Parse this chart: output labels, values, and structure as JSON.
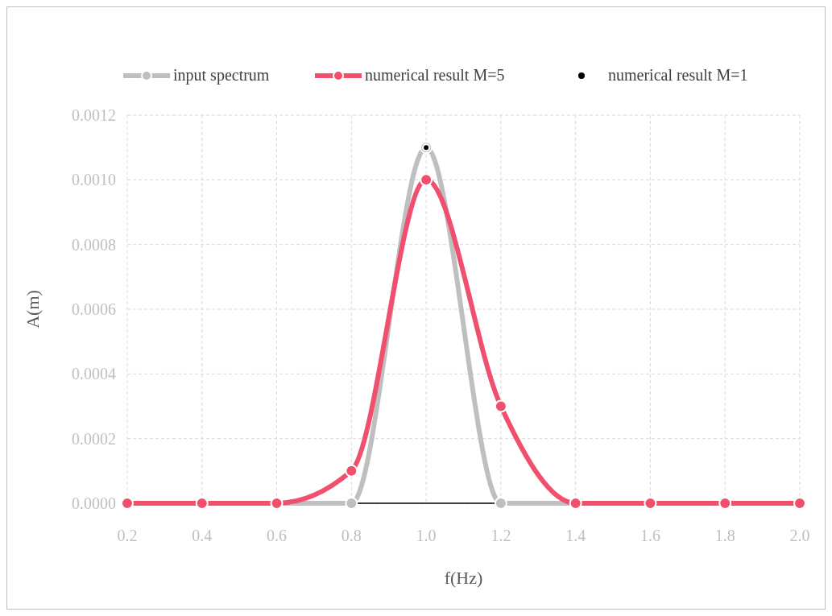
{
  "chart_data": {
    "type": "line",
    "xlabel": "f(Hz)",
    "ylabel": "A(m)",
    "x": [
      0.2,
      0.4,
      0.6,
      0.8,
      1.0,
      1.2,
      1.4,
      1.6,
      1.8,
      2.0
    ],
    "series": [
      {
        "name": "input spectrum",
        "color": "#bfbfbf",
        "values": [
          0,
          0,
          0,
          0,
          0.0011,
          0,
          0,
          0,
          0,
          0
        ]
      },
      {
        "name": "numerical result M=5",
        "color": "#f0506e",
        "values": [
          0,
          0,
          0,
          0.0001,
          0.001,
          0.0003,
          0,
          0,
          0,
          0
        ]
      },
      {
        "name": "numerical result M=1",
        "color": "#000000",
        "type": "scatter",
        "x": [
          1.0
        ],
        "values": [
          0.0011
        ]
      }
    ],
    "xlim": [
      0.2,
      2.0
    ],
    "xticks": [
      {
        "value": 0.2,
        "label": "0.2"
      },
      {
        "value": 0.4,
        "label": "0.4"
      },
      {
        "value": 0.6,
        "label": "0.6"
      },
      {
        "value": 0.8,
        "label": "0.8"
      },
      {
        "value": 1.0,
        "label": "1.0"
      },
      {
        "value": 1.2,
        "label": "1.2"
      },
      {
        "value": 1.4,
        "label": "1.4"
      },
      {
        "value": 1.6,
        "label": "1.6"
      },
      {
        "value": 1.8,
        "label": "1.8"
      },
      {
        "value": 2.0,
        "label": "2.0"
      }
    ],
    "ylim": [
      0,
      0.0012
    ],
    "yticks": [
      {
        "value": 0,
        "label": "0.0000"
      },
      {
        "value": 0.0002,
        "label": "0.0002"
      },
      {
        "value": 0.0004,
        "label": "0.0004"
      },
      {
        "value": 0.0006,
        "label": "0.0006"
      },
      {
        "value": 0.0008,
        "label": "0.0008"
      },
      {
        "value": 0.001,
        "label": "0.0010"
      },
      {
        "value": 0.0012,
        "label": "0.0012"
      }
    ],
    "grid": true,
    "legend": "top",
    "marker": "circle",
    "line_style": "solid"
  }
}
